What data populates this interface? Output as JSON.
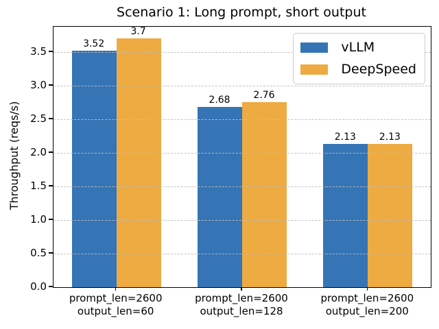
{
  "chart_data": {
    "type": "bar",
    "title": "Scenario 1: Long prompt, short output",
    "xlabel": "",
    "ylabel": "Throughput (reqs/s)",
    "categories": [
      "prompt_len=2600\noutput_len=60",
      "prompt_len=2600\noutput_len=128",
      "prompt_len=2600\noutput_len=200"
    ],
    "series": [
      {
        "name": "vLLM",
        "color": "#3574b5",
        "values": [
          3.52,
          2.68,
          2.13
        ],
        "value_labels": [
          "3.52",
          "2.68",
          "2.13"
        ]
      },
      {
        "name": "DeepSpeed",
        "color": "#edab42",
        "values": [
          3.7,
          2.76,
          2.13
        ],
        "value_labels": [
          "3.7",
          "2.76",
          "2.13"
        ]
      }
    ],
    "yticks": [
      0.0,
      0.5,
      1.0,
      1.5,
      2.0,
      2.5,
      3.0,
      3.5
    ],
    "ytick_labels": [
      "0.0",
      "0.5",
      "1.0",
      "1.5",
      "2.0",
      "2.5",
      "3.0",
      "3.5"
    ],
    "ylim": [
      0,
      3.878
    ],
    "grid": {
      "axis": "y",
      "linestyle": "dashed",
      "on": true
    },
    "legend": {
      "position": "upper right"
    },
    "bar_labels_shown": true
  }
}
